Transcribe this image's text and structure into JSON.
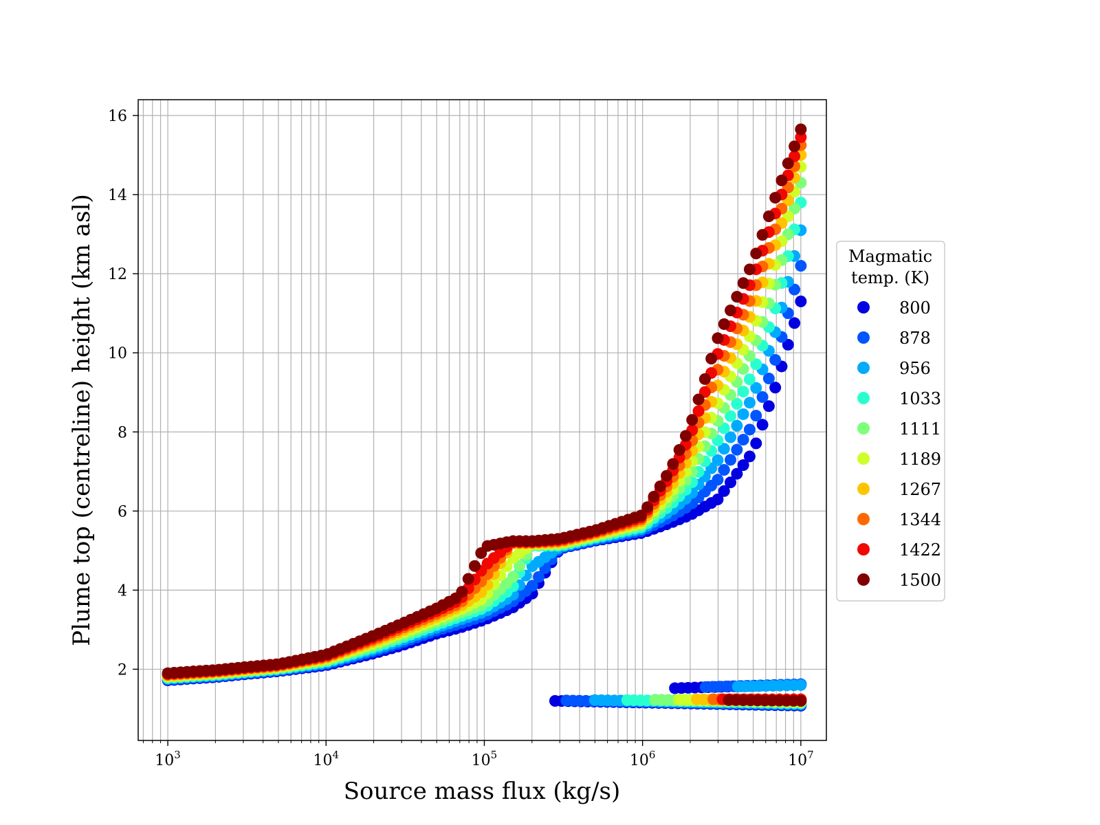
{
  "chart_data": {
    "type": "scatter",
    "xlabel": "Source mass flux (kg/s)",
    "ylabel": "Plume top (centreline) height (km asl)",
    "x_scale": "log",
    "xlim": [
      650,
      14500000
    ],
    "ylim": [
      0.2,
      16.4
    ],
    "x_ticks": [
      {
        "value": 1000,
        "base": "10",
        "exp": "3"
      },
      {
        "value": 10000,
        "base": "10",
        "exp": "4"
      },
      {
        "value": 100000,
        "base": "10",
        "exp": "5"
      },
      {
        "value": 1000000,
        "base": "10",
        "exp": "6"
      },
      {
        "value": 10000000,
        "base": "10",
        "exp": "7"
      }
    ],
    "y_ticks": [
      "2",
      "4",
      "6",
      "8",
      "10",
      "12",
      "14",
      "16"
    ],
    "grid": true,
    "legend": {
      "title_line1": "Magmatic",
      "title_line2": "temp. (K)",
      "placement": "outside-right"
    },
    "flux_grid": [
      1000,
      1500,
      2000,
      3000,
      5000,
      10000,
      20000,
      30000,
      50000,
      70000,
      100000,
      150000,
      200000,
      300000,
      500000,
      1000000,
      1500000,
      2000000,
      3000000,
      5000000,
      7000000,
      10000000
    ],
    "series": [
      {
        "name": "800",
        "color": "#0000e0",
        "heights": [
          1.72,
          1.77,
          1.8,
          1.87,
          1.95,
          2.1,
          2.4,
          2.6,
          2.9,
          3.05,
          3.25,
          3.55,
          3.9,
          5.05,
          5.25,
          5.45,
          5.7,
          5.9,
          6.3,
          7.5,
          9.2,
          11.3
        ],
        "lower": {
          "x_start": 280000,
          "x_end": 10000000,
          "y_start": 1.2,
          "y_end": 1.08,
          "bump_start": 1600000,
          "bump_y": 1.52,
          "bump_y_end": 1.62
        }
      },
      {
        "name": "878",
        "color": "#0055ff",
        "heights": [
          1.74,
          1.79,
          1.82,
          1.89,
          1.97,
          2.13,
          2.45,
          2.67,
          2.98,
          3.15,
          3.35,
          3.7,
          4.1,
          5.07,
          5.27,
          5.5,
          5.85,
          6.15,
          6.8,
          8.2,
          9.9,
          12.2
        ],
        "lower": {
          "x_start": 330000,
          "x_end": 10000000,
          "y_start": 1.21,
          "y_end": 1.1,
          "bump_start": 2500000,
          "bump_y": 1.55,
          "bump_y_end": 1.62
        }
      },
      {
        "name": "956",
        "color": "#00aaff",
        "heights": [
          1.76,
          1.81,
          1.84,
          1.91,
          1.99,
          2.16,
          2.5,
          2.73,
          3.05,
          3.25,
          3.45,
          3.85,
          4.6,
          5.09,
          5.3,
          5.55,
          6.0,
          6.4,
          7.3,
          8.9,
          10.6,
          13.1
        ],
        "lower": {
          "x_start": 500000,
          "x_end": 10000000,
          "y_start": 1.22,
          "y_end": 1.12,
          "bump_start": 4000000,
          "bump_y": 1.56,
          "bump_y_end": 1.6
        }
      },
      {
        "name": "1033",
        "color": "#29ffce",
        "heights": [
          1.78,
          1.83,
          1.86,
          1.93,
          2.01,
          2.19,
          2.55,
          2.79,
          3.12,
          3.33,
          3.55,
          4.05,
          5.12,
          5.12,
          5.33,
          5.6,
          6.15,
          6.65,
          7.8,
          9.5,
          11.2,
          13.8
        ],
        "lower": {
          "x_start": 800000,
          "x_end": 10000000,
          "y_start": 1.22,
          "y_end": 1.14
        }
      },
      {
        "name": "1111",
        "color": "#7dff7a",
        "heights": [
          1.8,
          1.85,
          1.88,
          1.95,
          2.03,
          2.22,
          2.6,
          2.85,
          3.19,
          3.42,
          3.65,
          4.3,
          5.14,
          5.15,
          5.36,
          5.65,
          6.3,
          6.9,
          8.3,
          10.1,
          11.8,
          14.3
        ],
        "lower": {
          "x_start": 1200000,
          "x_end": 10000000,
          "y_start": 1.23,
          "y_end": 1.16
        }
      },
      {
        "name": "1189",
        "color": "#ceff29",
        "heights": [
          1.82,
          1.87,
          1.9,
          1.97,
          2.05,
          2.25,
          2.65,
          2.91,
          3.26,
          3.5,
          3.8,
          4.8,
          5.16,
          5.18,
          5.39,
          5.7,
          6.45,
          7.15,
          8.75,
          10.6,
          12.3,
          14.7
        ],
        "lower": {
          "x_start": 1700000,
          "x_end": 10000000,
          "y_start": 1.23,
          "y_end": 1.18
        }
      },
      {
        "name": "1267",
        "color": "#ffc400",
        "heights": [
          1.84,
          1.89,
          1.92,
          1.99,
          2.07,
          2.28,
          2.7,
          2.97,
          3.33,
          3.58,
          4.0,
          5.18,
          5.18,
          5.21,
          5.42,
          5.75,
          6.6,
          7.4,
          9.2,
          11.1,
          12.8,
          15.0
        ],
        "lower": {
          "x_start": 2200000,
          "x_end": 10000000,
          "y_start": 1.24,
          "y_end": 1.2
        }
      },
      {
        "name": "1344",
        "color": "#ff6800",
        "heights": [
          1.86,
          1.91,
          1.94,
          2.01,
          2.09,
          2.31,
          2.75,
          3.03,
          3.4,
          3.66,
          4.3,
          5.2,
          5.2,
          5.24,
          5.45,
          5.8,
          6.75,
          7.65,
          9.6,
          11.5,
          13.2,
          15.25
        ],
        "lower": {
          "x_start": 2800000,
          "x_end": 10000000,
          "y_start": 1.24,
          "y_end": 1.22
        }
      },
      {
        "name": "1422",
        "color": "#f10800",
        "heights": [
          1.88,
          1.93,
          1.96,
          2.03,
          2.11,
          2.34,
          2.8,
          3.09,
          3.47,
          3.75,
          4.6,
          5.22,
          5.22,
          5.27,
          5.48,
          5.85,
          6.9,
          7.9,
          10.0,
          11.9,
          13.6,
          15.45
        ],
        "lower": {
          "x_start": 3200000,
          "x_end": 10000000,
          "y_start": 1.24,
          "y_end": 1.24
        }
      },
      {
        "name": "1500",
        "color": "#800000",
        "heights": [
          1.9,
          1.95,
          1.98,
          2.05,
          2.13,
          2.37,
          2.85,
          3.15,
          3.54,
          3.85,
          5.1,
          5.24,
          5.24,
          5.3,
          5.51,
          5.9,
          7.05,
          8.15,
          10.4,
          12.3,
          14.0,
          15.65
        ],
        "lower": {
          "x_start": 3500000,
          "x_end": 10000000,
          "y_start": 1.22,
          "y_end": 1.2
        }
      }
    ]
  }
}
